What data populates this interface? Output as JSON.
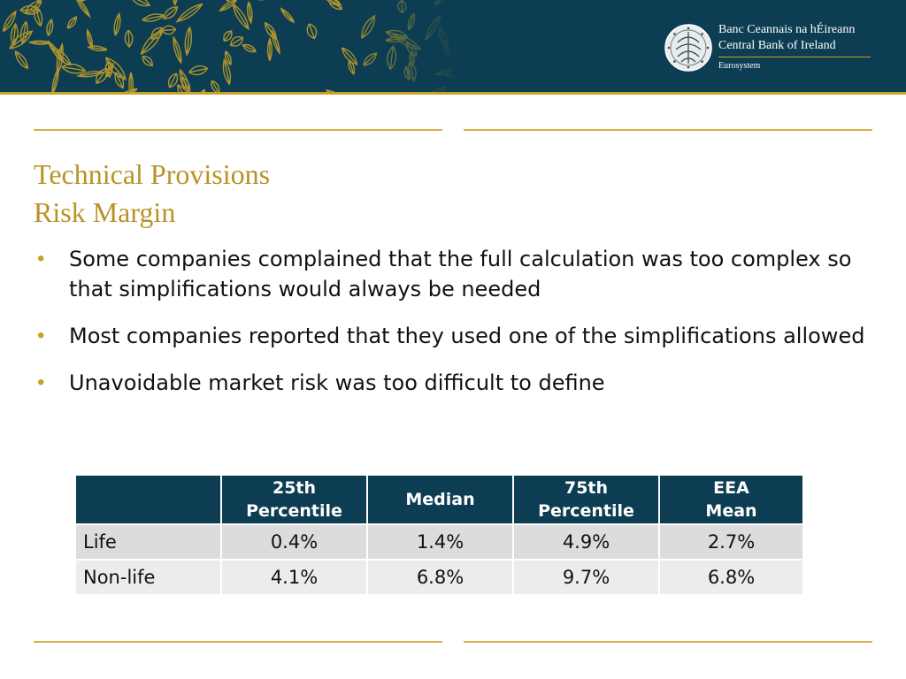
{
  "header": {
    "brand_line1": "Banc Ceannais na hÉireann",
    "brand_line2": "Central Bank of Ireland",
    "brand_line3": "Eurosystem",
    "logo_icon": "central-bank-seal-icon",
    "colors": {
      "banner": "#0c3d52",
      "gold": "#c9a227"
    }
  },
  "slide": {
    "title_line1": "Technical Provisions",
    "title_line2": "Risk Margin",
    "title_color": "#b99227",
    "bullets": [
      "Some companies complained that the full calculation was too complex so that simplifications would always be needed",
      "Most companies reported that they used one of the simplifications allowed",
      "Unavoidable market risk was too difficult to define"
    ]
  },
  "table": {
    "headers": [
      [],
      [
        "25th",
        "Percentile"
      ],
      [
        "Median"
      ],
      [
        "75th",
        "Percentile"
      ],
      [
        "EEA",
        "Mean"
      ]
    ],
    "rows": [
      [
        "Life",
        "0.4%",
        "1.4%",
        "4.9%",
        "2.7%"
      ],
      [
        "Non-life",
        "4.1%",
        "6.8%",
        "9.7%",
        "6.8%"
      ]
    ],
    "header_color": "#0c3d52"
  }
}
